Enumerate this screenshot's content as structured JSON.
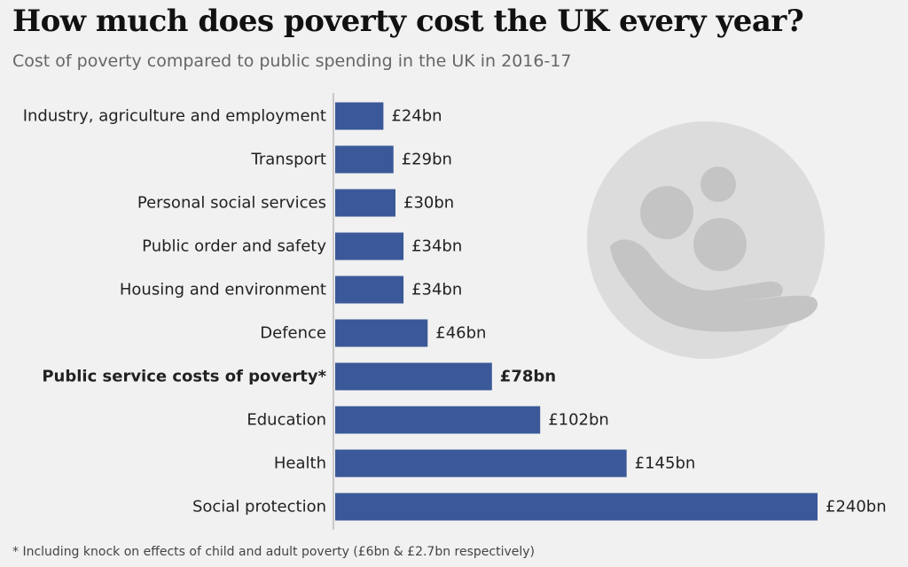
{
  "title": "How much does poverty cost the UK every year?",
  "subtitle": "Cost of poverty compared to public spending in the UK in 2016-17",
  "footnote": "* Including knock on effects of child and adult poverty (£6bn & £2.7bn respectively)",
  "icon": "hand-holding-people-icon",
  "colors": {
    "bar": "#3b5998",
    "background": "#f1f1f1",
    "axis": "#c8c8c8",
    "icon": "#d9d9d9"
  },
  "chart_data": {
    "type": "bar",
    "orientation": "horizontal",
    "categories": [
      "Industry, agriculture and employment",
      "Transport",
      "Personal social services",
      "Public order and safety",
      "Housing and environment",
      "Defence",
      "Public service costs of poverty*",
      "Education",
      "Health",
      "Social protection"
    ],
    "values": [
      24,
      29,
      30,
      34,
      34,
      46,
      78,
      102,
      145,
      240
    ],
    "value_labels": [
      "£24bn",
      "£29bn",
      "£30bn",
      "£34bn",
      "£34bn",
      "£46bn",
      "£78bn",
      "£102bn",
      "£145bn",
      "£240bn"
    ],
    "highlight_index": 6,
    "xlim": [
      0,
      240
    ],
    "grid": false,
    "legend": "none"
  }
}
